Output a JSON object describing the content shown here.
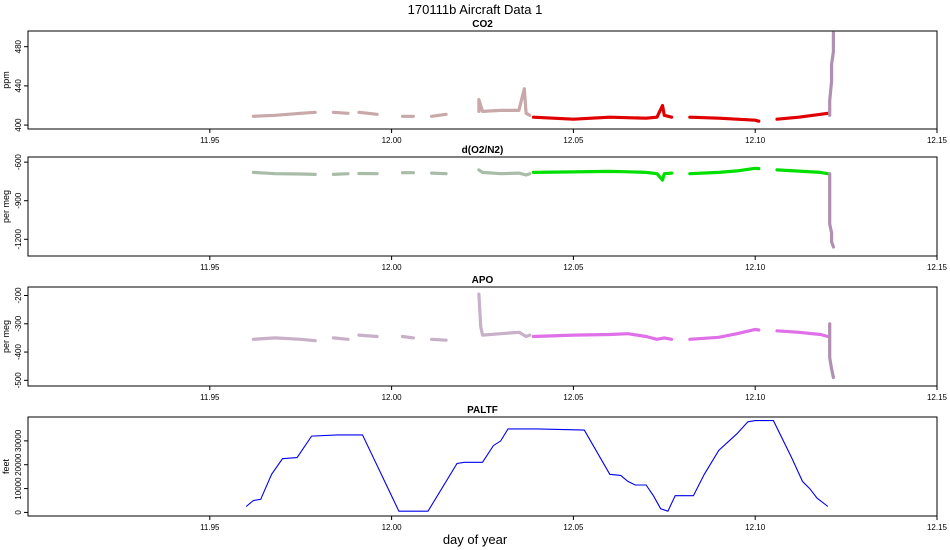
{
  "title": "170111b   Aircraft Data 1",
  "xlabel": "day of year",
  "x_ticks": [
    "11.95",
    "12.00",
    "12.05",
    "12.10",
    "12.15"
  ],
  "chart_data": [
    {
      "type": "scatter",
      "title": "CO2",
      "ylabel": "ppm",
      "xlim": [
        11.9,
        12.15
      ],
      "ylim": [
        396,
        496
      ],
      "y_ticks": [
        "400",
        "440",
        "480"
      ],
      "series": [
        {
          "color": "#c8a8a8",
          "segments": [
            [
              [
                11.962,
                409
              ],
              [
                11.968,
                410
              ],
              [
                11.975,
                412
              ],
              [
                11.979,
                413
              ]
            ],
            [
              [
                11.984,
                413
              ],
              [
                11.988,
                412
              ]
            ],
            [
              [
                11.991,
                413
              ],
              [
                11.996,
                411
              ]
            ],
            [
              [
                12.003,
                409
              ],
              [
                12.006,
                409
              ]
            ],
            [
              [
                12.011,
                409
              ],
              [
                12.015,
                411
              ]
            ],
            [
              [
                12.024,
                414
              ],
              [
                12.024,
                426
              ],
              [
                12.025,
                414
              ],
              [
                12.03,
                415
              ],
              [
                12.035,
                415
              ],
              [
                12.0365,
                437
              ],
              [
                12.037,
                412
              ],
              [
                12.038,
                410
              ]
            ]
          ]
        },
        {
          "color": "#e00000",
          "segments": [
            [
              [
                12.039,
                408
              ],
              [
                12.05,
                406
              ],
              [
                12.06,
                408
              ],
              [
                12.07,
                407
              ],
              [
                12.073,
                408
              ],
              [
                12.0745,
                420
              ],
              [
                12.075,
                410
              ],
              [
                12.077,
                408
              ]
            ],
            [
              [
                12.082,
                408
              ],
              [
                12.09,
                407
              ],
              [
                12.1,
                405
              ],
              [
                12.101,
                404
              ]
            ],
            [
              [
                12.106,
                406
              ],
              [
                12.112,
                408
              ],
              [
                12.118,
                411
              ],
              [
                12.12,
                412
              ]
            ]
          ]
        },
        {
          "color": "#b090b0",
          "segments": [
            [
              [
                12.1205,
                410
              ],
              [
                12.1205,
                425
              ],
              [
                12.121,
                445
              ],
              [
                12.121,
                462
              ],
              [
                12.1215,
                475
              ],
              [
                12.1215,
                494
              ]
            ]
          ]
        }
      ]
    },
    {
      "type": "scatter",
      "title": "d(O2/N2)",
      "ylabel": "per meg",
      "xlim": [
        11.9,
        12.15
      ],
      "ylim": [
        -1330,
        -560
      ],
      "y_ticks": [
        "-600",
        "-900",
        "-1200"
      ],
      "series": [
        {
          "color": "#a8bca8",
          "segments": [
            [
              [
                11.962,
                -680
              ],
              [
                11.968,
                -690
              ],
              [
                11.975,
                -692
              ],
              [
                11.979,
                -695
              ]
            ],
            [
              [
                11.984,
                -695
              ],
              [
                11.988,
                -690
              ]
            ],
            [
              [
                11.991,
                -688
              ],
              [
                11.996,
                -690
              ]
            ],
            [
              [
                12.003,
                -682
              ],
              [
                12.006,
                -682
              ]
            ],
            [
              [
                12.011,
                -685
              ],
              [
                12.015,
                -690
              ]
            ],
            [
              [
                12.024,
                -660
              ],
              [
                12.025,
                -680
              ],
              [
                12.03,
                -690
              ],
              [
                12.035,
                -685
              ],
              [
                12.037,
                -700
              ],
              [
                12.038,
                -690
              ]
            ]
          ]
        },
        {
          "color": "#00e000",
          "segments": [
            [
              [
                12.039,
                -680
              ],
              [
                12.05,
                -676
              ],
              [
                12.06,
                -672
              ],
              [
                12.065,
                -675
              ],
              [
                12.07,
                -680
              ],
              [
                12.073,
                -690
              ],
              [
                12.0745,
                -740
              ],
              [
                12.075,
                -690
              ],
              [
                12.077,
                -685
              ]
            ],
            [
              [
                12.082,
                -690
              ],
              [
                12.09,
                -680
              ],
              [
                12.095,
                -668
              ],
              [
                12.1,
                -648
              ],
              [
                12.101,
                -650
              ]
            ],
            [
              [
                12.106,
                -660
              ],
              [
                12.112,
                -670
              ],
              [
                12.118,
                -680
              ],
              [
                12.12,
                -690
              ]
            ]
          ]
        },
        {
          "color": "#b090b0",
          "segments": [
            [
              [
                12.1205,
                -690
              ],
              [
                12.1205,
                -1080
              ],
              [
                12.121,
                -1150
              ],
              [
                12.121,
                -1220
              ],
              [
                12.1215,
                -1260
              ]
            ]
          ]
        }
      ]
    },
    {
      "type": "scatter",
      "title": "APO",
      "ylabel": "per meg",
      "xlim": [
        11.9,
        12.15
      ],
      "ylim": [
        -520,
        -170
      ],
      "y_ticks": [
        "-200",
        "-300",
        "-400",
        "-500"
      ],
      "series": [
        {
          "color": "#c8b0c8",
          "segments": [
            [
              [
                11.962,
                -355
              ],
              [
                11.968,
                -350
              ],
              [
                11.975,
                -355
              ],
              [
                11.979,
                -360
              ]
            ],
            [
              [
                11.984,
                -350
              ],
              [
                11.988,
                -355
              ]
            ],
            [
              [
                11.991,
                -340
              ],
              [
                11.996,
                -345
              ]
            ],
            [
              [
                12.003,
                -345
              ],
              [
                12.006,
                -350
              ]
            ],
            [
              [
                12.011,
                -355
              ],
              [
                12.015,
                -358
              ]
            ],
            [
              [
                12.024,
                -195
              ],
              [
                12.0245,
                -310
              ],
              [
                12.025,
                -340
              ],
              [
                12.03,
                -335
              ],
              [
                12.035,
                -330
              ],
              [
                12.037,
                -345
              ],
              [
                12.038,
                -340
              ]
            ]
          ]
        },
        {
          "color": "#e070e8",
          "segments": [
            [
              [
                12.039,
                -345
              ],
              [
                12.05,
                -340
              ],
              [
                12.06,
                -338
              ],
              [
                12.065,
                -335
              ],
              [
                12.07,
                -345
              ],
              [
                12.073,
                -355
              ],
              [
                12.075,
                -350
              ],
              [
                12.077,
                -355
              ]
            ],
            [
              [
                12.082,
                -355
              ],
              [
                12.09,
                -348
              ],
              [
                12.095,
                -335
              ],
              [
                12.1,
                -320
              ],
              [
                12.101,
                -322
              ]
            ],
            [
              [
                12.106,
                -325
              ],
              [
                12.112,
                -330
              ],
              [
                12.118,
                -338
              ],
              [
                12.12,
                -345
              ]
            ]
          ]
        },
        {
          "color": "#b090b0",
          "segments": [
            [
              [
                12.1205,
                -300
              ],
              [
                12.1205,
                -420
              ],
              [
                12.121,
                -460
              ],
              [
                12.1215,
                -490
              ]
            ]
          ]
        }
      ]
    },
    {
      "type": "line",
      "title": "PALTF",
      "ylabel": "feet",
      "xlim": [
        11.9,
        12.15
      ],
      "ylim": [
        -1500,
        40000
      ],
      "y_ticks": [
        "0",
        "10000",
        "20000",
        "30000"
      ],
      "series": [
        {
          "color": "#0000ee",
          "points": [
            [
              11.96,
              2500
            ],
            [
              11.962,
              5000
            ],
            [
              11.964,
              5500
            ],
            [
              11.967,
              16000
            ],
            [
              11.97,
              22500
            ],
            [
              11.974,
              23000
            ],
            [
              11.978,
              32000
            ],
            [
              11.985,
              32500
            ],
            [
              11.992,
              32500
            ],
            [
              12.002,
              500
            ],
            [
              12.01,
              500
            ],
            [
              12.018,
              20500
            ],
            [
              12.02,
              21000
            ],
            [
              12.025,
              21000
            ],
            [
              12.028,
              28000
            ],
            [
              12.03,
              30000
            ],
            [
              12.032,
              35000
            ],
            [
              12.04,
              35000
            ],
            [
              12.053,
              34500
            ],
            [
              12.06,
              16000
            ],
            [
              12.063,
              15500
            ],
            [
              12.065,
              13000
            ],
            [
              12.067,
              11500
            ],
            [
              12.07,
              11500
            ],
            [
              12.072,
              7000
            ],
            [
              12.074,
              1500
            ],
            [
              12.076,
              500
            ],
            [
              12.078,
              7000
            ],
            [
              12.08,
              7000
            ],
            [
              12.083,
              7000
            ],
            [
              12.086,
              16000
            ],
            [
              12.09,
              26000
            ],
            [
              12.095,
              33000
            ],
            [
              12.098,
              38000
            ],
            [
              12.1,
              38500
            ],
            [
              12.105,
              38500
            ],
            [
              12.11,
              23000
            ],
            [
              12.113,
              13000
            ],
            [
              12.115,
              10000
            ],
            [
              12.117,
              6000
            ],
            [
              12.12,
              2500
            ]
          ]
        }
      ]
    }
  ]
}
